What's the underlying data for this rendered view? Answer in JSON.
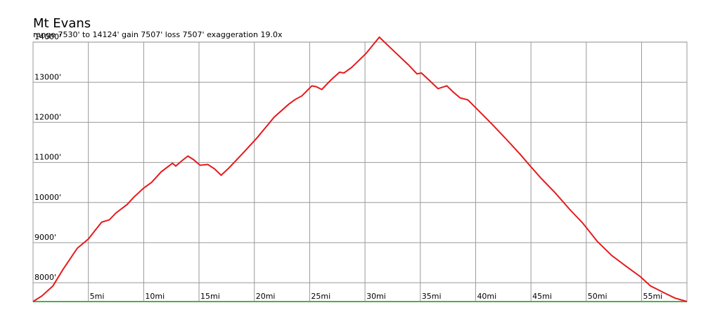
{
  "chart_data": {
    "type": "line",
    "title": "Mt Evans",
    "subtitle": "range 7530' to 14124'  gain 7507'  loss 7507'  exaggeration 19.0x",
    "x": [
      0,
      0.8,
      1.8,
      2.7,
      4.0,
      5.0,
      5.6,
      6.2,
      6.9,
      7.5,
      8.5,
      9.1,
      10.0,
      10.7,
      11.6,
      12.6,
      12.9,
      13.4,
      14.0,
      14.5,
      15.1,
      15.8,
      16.4,
      17.0,
      17.7,
      18.9,
      20.2,
      21.8,
      23.1,
      23.7,
      24.3,
      25.2,
      25.6,
      26.1,
      26.9,
      27.7,
      28.1,
      28.8,
      30.1,
      31.3,
      32.6,
      33.9,
      34.7,
      35.1,
      35.8,
      36.6,
      37.4,
      38.0,
      38.6,
      39.3,
      40.2,
      41.5,
      42.8,
      44.0,
      45.0,
      45.9,
      47.2,
      48.5,
      49.7,
      51.0,
      52.3,
      53.6,
      54.9,
      55.8,
      57.1,
      58.0,
      59.1
    ],
    "series": [
      {
        "color": "#e41a1c",
        "values": [
          7530,
          7670,
          7920,
          8330,
          8860,
          9090,
          9300,
          9510,
          9570,
          9740,
          9950,
          10130,
          10360,
          10500,
          10770,
          10980,
          10910,
          11030,
          11160,
          11070,
          10930,
          10950,
          10840,
          10680,
          10860,
          11210,
          11600,
          12130,
          12450,
          12570,
          12660,
          12910,
          12890,
          12820,
          13050,
          13250,
          13230,
          13370,
          13720,
          14124,
          13780,
          13440,
          13210,
          13230,
          13050,
          12840,
          12910,
          12750,
          12610,
          12560,
          12310,
          11950,
          11570,
          11210,
          10890,
          10610,
          10240,
          9830,
          9480,
          9030,
          8680,
          8410,
          8150,
          7920,
          7740,
          7620,
          7530
        ]
      }
    ],
    "xlim": [
      0,
      59.1
    ],
    "ylim": [
      7530,
      14124
    ],
    "xticks": [
      {
        "value": 5,
        "label": "5mi"
      },
      {
        "value": 10,
        "label": "10mi"
      },
      {
        "value": 15,
        "label": "15mi"
      },
      {
        "value": 20,
        "label": "20mi"
      },
      {
        "value": 25,
        "label": "25mi"
      },
      {
        "value": 30,
        "label": "30mi"
      },
      {
        "value": 35,
        "label": "35mi"
      },
      {
        "value": 40,
        "label": "40mi"
      },
      {
        "value": 45,
        "label": "45mi"
      },
      {
        "value": 50,
        "label": "50mi"
      },
      {
        "value": 55,
        "label": "55mi"
      }
    ],
    "yticks": [
      {
        "value": 8000,
        "label": "8000'"
      },
      {
        "value": 9000,
        "label": "9000'"
      },
      {
        "value": 10000,
        "label": "10000'"
      },
      {
        "value": 11000,
        "label": "11000'"
      },
      {
        "value": 12000,
        "label": "12000'"
      },
      {
        "value": 13000,
        "label": "13000'"
      },
      {
        "value": 14000,
        "label": "14000'"
      }
    ],
    "grid": true
  }
}
